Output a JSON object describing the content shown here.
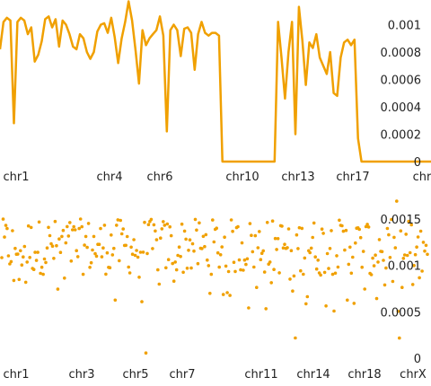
{
  "chart_data": [
    {
      "type": "line",
      "title": "",
      "xlabel": "",
      "ylabel": "",
      "color": "#f0a000",
      "chromosome_labels": [
        "chr1",
        "chr4",
        "chr6",
        "chr10",
        "chr13",
        "chr17",
        "chr"
      ],
      "y_ticks": [
        "0",
        "0.0002",
        "0.0004",
        "0.0006",
        "0.0008",
        "0.001"
      ],
      "ylim": [
        0,
        0.00118
      ],
      "grid": false,
      "legend": "none",
      "x": [
        1,
        2,
        3,
        4,
        5,
        6,
        7,
        8,
        9,
        10,
        11,
        12,
        13,
        14,
        15,
        16,
        17,
        18,
        19,
        20,
        21,
        22,
        23,
        24,
        25,
        26,
        27,
        28,
        29,
        30,
        31,
        32,
        33,
        34,
        35,
        36,
        37,
        38,
        39,
        40,
        41,
        42,
        43,
        44,
        45,
        46,
        47,
        48,
        49,
        50,
        51,
        52,
        53,
        54,
        55,
        56,
        57,
        58,
        59,
        60,
        61,
        62,
        63,
        64,
        65,
        66,
        67,
        68,
        69,
        70,
        71,
        72,
        73,
        74,
        75,
        76,
        77,
        78,
        79,
        80,
        81,
        82,
        83,
        84,
        85,
        86,
        87,
        88,
        89,
        90,
        91,
        92,
        93,
        94,
        95,
        96,
        97,
        98,
        99,
        100,
        101,
        102,
        103,
        104,
        105,
        106,
        107,
        108,
        109,
        110,
        111,
        112,
        113,
        114,
        115,
        116,
        117,
        118,
        119,
        120,
        121,
        122,
        123,
        124,
        125
      ],
      "values": [
        0.00082,
        0.00102,
        0.00105,
        0.00103,
        0.00028,
        0.00102,
        0.00105,
        0.00103,
        0.00093,
        0.00098,
        0.00073,
        0.00078,
        0.00088,
        0.00104,
        0.00106,
        0.00098,
        0.00104,
        0.00084,
        0.00103,
        0.001,
        0.00093,
        0.00084,
        0.00082,
        0.00093,
        0.0009,
        0.0008,
        0.00075,
        0.0008,
        0.00095,
        0.001,
        0.00101,
        0.00094,
        0.00105,
        0.00091,
        0.00072,
        0.0009,
        0.00102,
        0.00117,
        0.00103,
        0.00081,
        0.00057,
        0.00096,
        0.00085,
        0.0009,
        0.00093,
        0.00096,
        0.00106,
        0.00092,
        0.00022,
        0.00096,
        0.001,
        0.00096,
        0.00077,
        0.00097,
        0.00098,
        0.00094,
        0.00067,
        0.00093,
        0.00102,
        0.00094,
        0.00092,
        0.00094,
        0.00094,
        0.00092,
        0.0,
        0.0,
        0.0,
        0.0,
        0.0,
        0.0,
        0.0,
        0.0,
        0.0,
        0.0,
        0.0,
        0.0,
        0.0,
        0.0,
        0.0,
        0.0,
        0.00102,
        0.00076,
        0.00046,
        0.0008,
        0.00102,
        0.0002,
        0.00113,
        0.00088,
        0.00056,
        0.00087,
        0.00083,
        0.00093,
        0.00076,
        0.0007,
        0.00064,
        0.0008,
        0.0005,
        0.00048,
        0.00076,
        0.00087,
        0.00089,
        0.00085,
        0.00089,
        0.00017,
        0.0,
        0.0,
        0.0,
        0.0,
        0.0,
        0.0,
        0.0,
        0.0,
        0.0,
        0.0,
        0.0,
        0.0,
        0.0,
        0.0,
        0.0,
        0.0,
        0.0,
        0.0,
        0.0,
        0.0,
        0.0
      ]
    },
    {
      "type": "scatter",
      "title": "",
      "xlabel": "",
      "ylabel": "",
      "color": "#f0a000",
      "chromosome_labels": [
        "chr1",
        "chr3",
        "chr5",
        "chr7",
        "chr11",
        "chr14",
        "chr18",
        "chrX"
      ],
      "y_ticks": [
        "0",
        "0.0005",
        "0.001",
        "0.0015"
      ],
      "ylim": [
        0,
        0.00175
      ],
      "grid": false,
      "legend": "none",
      "n_points": 320,
      "point_ranges_note": "",
      "bulk_range": [
        0.0009,
        0.0015
      ],
      "sparse_range": [
        0.0,
        0.00175
      ]
    }
  ]
}
